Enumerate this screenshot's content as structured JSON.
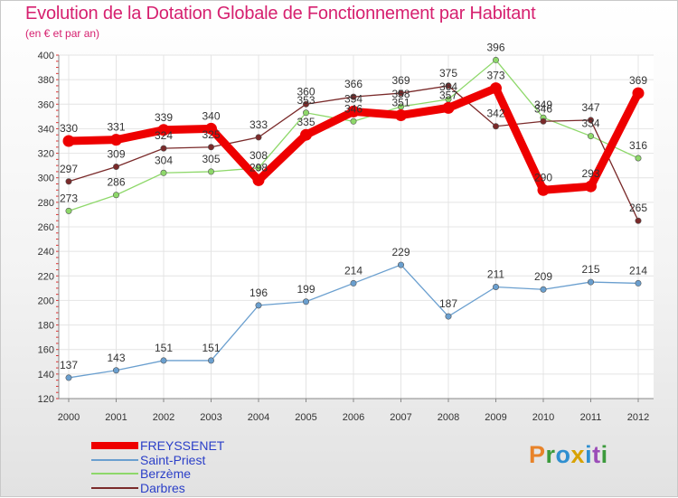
{
  "title": "Evolution de la Dotation Globale de Fonctionnement par Habitant",
  "subtitle": "(en € et par an)",
  "logo": {
    "letters": [
      "P",
      "r",
      "o",
      "x",
      "i",
      "t",
      "i"
    ],
    "colors": [
      "#e8832a",
      "#3c9a3c",
      "#2f8fd0",
      "#d8a200",
      "#2f8fd0",
      "#9b4db8",
      "#3c9a3c"
    ]
  },
  "chart_data": {
    "type": "line",
    "title": "Evolution de la Dotation Globale de Fonctionnement par Habitant",
    "subtitle": "(en € et par an)",
    "x": [
      "2000",
      "2001",
      "2002",
      "2003",
      "2004",
      "2005",
      "2006",
      "2007",
      "2008",
      "2009",
      "2010",
      "2011",
      "2012"
    ],
    "ylim": [
      120,
      400
    ],
    "yticks": [
      "120",
      "140",
      "160",
      "180",
      "200",
      "220",
      "240",
      "260",
      "280",
      "300",
      "320",
      "340",
      "360",
      "380",
      "400"
    ],
    "grid": true,
    "legend_position": "bottom-left",
    "series": [
      {
        "name": "FREYSSENET",
        "color": "#ee0000",
        "values": [
          330,
          331,
          339,
          340,
          298,
          335,
          354,
          351,
          357,
          373,
          290,
          293,
          369
        ]
      },
      {
        "name": "Saint-Priest",
        "color": "#6a9fcf",
        "values": [
          137,
          143,
          151,
          151,
          196,
          199,
          214,
          229,
          187,
          211,
          209,
          215,
          214
        ]
      },
      {
        "name": "Berzème",
        "color": "#8ed86a",
        "values": [
          273,
          286,
          304,
          305,
          308,
          353,
          346,
          358,
          364,
          396,
          349,
          334,
          316
        ]
      },
      {
        "name": "Darbres",
        "color": "#7a2a2a",
        "values": [
          297,
          309,
          324,
          325,
          333,
          360,
          366,
          369,
          375,
          342,
          346,
          347,
          265
        ]
      }
    ]
  }
}
